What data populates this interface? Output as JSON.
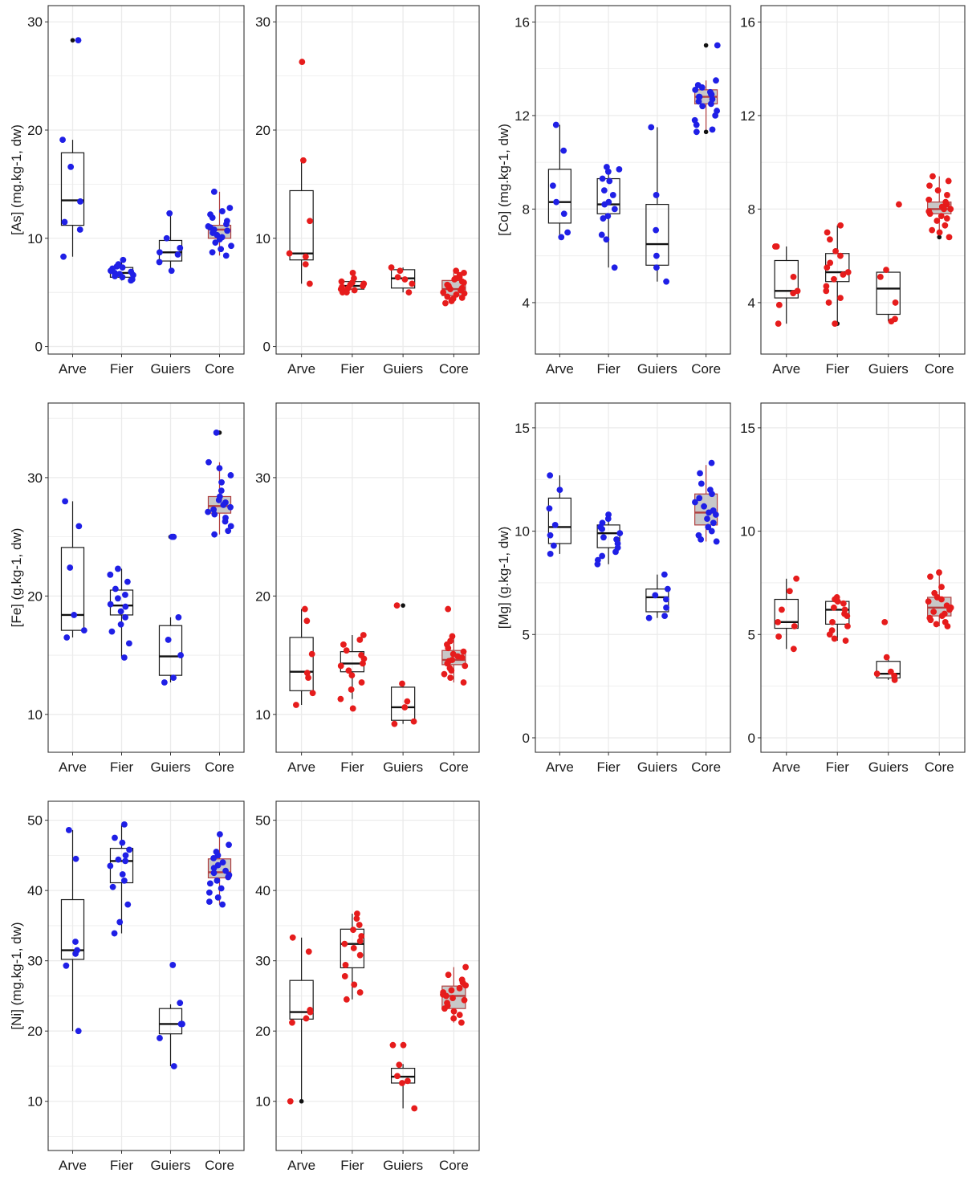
{
  "colors": {
    "set_a": "#1f1fe6",
    "set_b": "#e61c1c",
    "outlier": "#111111",
    "core_fill": "#c8c8c8",
    "core_border": "#b04040",
    "grid": "#ebebeb",
    "panel_border": "#333333"
  },
  "chart_data": [
    {
      "type": "box",
      "title": "",
      "ylabel": "[As] (mg.kg-1, dw)",
      "ylim": [
        -0.7,
        31.5
      ],
      "yticks": [
        0,
        10,
        20,
        30
      ],
      "minor": [
        5,
        15,
        25
      ],
      "categories": [
        "Arve",
        "Fier",
        "Guiers",
        "Core"
      ],
      "point_color": "set_a",
      "boxes": [
        {
          "min": 8.3,
          "q1": 11.2,
          "median": 13.5,
          "q3": 17.9,
          "max": 19.1
        },
        {
          "min": 6.1,
          "q1": 6.4,
          "median": 6.8,
          "q3": 7.3,
          "max": 8.0
        },
        {
          "min": 7.0,
          "q1": 7.9,
          "median": 8.7,
          "q3": 9.8,
          "max": 12.3
        },
        {
          "min": 8.4,
          "q1": 10.0,
          "median": 10.8,
          "q3": 11.2,
          "max": 14.3
        }
      ],
      "points": [
        [
          28.3,
          19.1,
          16.6,
          13.4,
          11.5,
          10.8,
          8.3
        ],
        [
          8.0,
          7.6,
          7.4,
          7.3,
          7.2,
          7.0,
          6.9,
          6.8,
          6.7,
          6.6,
          6.5,
          6.4,
          6.2,
          6.1
        ],
        [
          12.3,
          10.0,
          9.1,
          8.7,
          8.5,
          7.8,
          7.0
        ],
        [
          14.3,
          12.8,
          12.5,
          12.2,
          11.9,
          11.6,
          11.3,
          11.1,
          11.0,
          10.8,
          10.7,
          10.5,
          10.3,
          10.1,
          9.9,
          9.6,
          9.3,
          9.0,
          8.7,
          8.4
        ]
      ],
      "outliers": [
        [
          28.3
        ],
        [],
        [],
        []
      ]
    },
    {
      "type": "box",
      "title": "",
      "ylabel": "",
      "ylim": [
        -0.7,
        31.5
      ],
      "yticks": [
        0,
        10,
        20,
        30
      ],
      "minor": [
        5,
        15,
        25
      ],
      "categories": [
        "Arve",
        "Fier",
        "Guiers",
        "Core"
      ],
      "point_color": "set_b",
      "boxes": [
        {
          "min": 5.8,
          "q1": 8.0,
          "median": 8.6,
          "q3": 14.4,
          "max": 17.2
        },
        {
          "min": 5.0,
          "q1": 5.3,
          "median": 5.6,
          "q3": 6.0,
          "max": 6.8
        },
        {
          "min": 5.0,
          "q1": 5.4,
          "median": 6.3,
          "q3": 7.1,
          "max": 7.3
        },
        {
          "min": 4.0,
          "q1": 4.7,
          "median": 5.3,
          "q3": 6.1,
          "max": 7.0
        }
      ],
      "points": [
        [
          26.3,
          17.2,
          11.6,
          8.6,
          8.3,
          7.6,
          5.8
        ],
        [
          6.8,
          6.3,
          6.0,
          5.9,
          5.8,
          5.7,
          5.6,
          5.5,
          5.4,
          5.3,
          5.2,
          5.1,
          5.0,
          5.0
        ],
        [
          7.3,
          7.0,
          6.4,
          6.2,
          5.8,
          5.0
        ],
        [
          7.0,
          6.8,
          6.6,
          6.4,
          6.2,
          6.0,
          5.9,
          5.7,
          5.5,
          5.4,
          5.3,
          5.2,
          5.0,
          4.9,
          4.8,
          4.6,
          4.4,
          4.2,
          4.0,
          5.6,
          6.3,
          4.5
        ]
      ],
      "outliers": [
        [
          26.3
        ],
        [],
        [],
        []
      ]
    },
    {
      "type": "box",
      "title": "",
      "ylabel": "[Co] (mg.kg-1, dw)",
      "ylim": [
        1.8,
        16.7
      ],
      "yticks": [
        4,
        8,
        12,
        16
      ],
      "minor": [
        6,
        10,
        14
      ],
      "categories": [
        "Arve",
        "Fier",
        "Guiers",
        "Core"
      ],
      "point_color": "set_a",
      "boxes": [
        {
          "min": 6.8,
          "q1": 7.4,
          "median": 8.3,
          "q3": 9.7,
          "max": 11.6
        },
        {
          "min": 5.5,
          "q1": 7.8,
          "median": 8.2,
          "q3": 9.3,
          "max": 9.8
        },
        {
          "min": 4.9,
          "q1": 5.6,
          "median": 6.5,
          "q3": 8.2,
          "max": 11.5
        },
        {
          "min": 11.3,
          "q1": 12.5,
          "median": 12.8,
          "q3": 13.1,
          "max": 13.5
        }
      ],
      "points": [
        [
          11.6,
          10.5,
          9.0,
          8.3,
          7.8,
          7.0,
          6.8
        ],
        [
          9.8,
          9.7,
          9.6,
          9.3,
          9.2,
          8.8,
          8.6,
          8.3,
          8.2,
          8.0,
          7.7,
          7.6,
          6.9,
          6.7,
          5.5
        ],
        [
          11.5,
          8.6,
          7.1,
          6.0,
          5.5,
          4.9
        ],
        [
          15.0,
          13.5,
          13.3,
          13.2,
          13.1,
          13.0,
          12.9,
          12.9,
          12.8,
          12.8,
          12.7,
          12.6,
          12.5,
          12.4,
          12.2,
          12.0,
          11.8,
          11.6,
          11.4,
          11.3
        ]
      ],
      "outliers": [
        [],
        [],
        [],
        [
          15.0,
          11.3
        ]
      ]
    },
    {
      "type": "box",
      "title": "",
      "ylabel": "",
      "ylim": [
        1.8,
        16.7
      ],
      "yticks": [
        4,
        8,
        12,
        16
      ],
      "minor": [
        6,
        10,
        14
      ],
      "categories": [
        "Arve",
        "Fier",
        "Guiers",
        "Core"
      ],
      "point_color": "set_b",
      "boxes": [
        {
          "min": 3.1,
          "q1": 4.2,
          "median": 4.5,
          "q3": 5.8,
          "max": 6.4
        },
        {
          "min": 3.1,
          "q1": 4.9,
          "median": 5.3,
          "q3": 6.1,
          "max": 7.3
        },
        {
          "min": 3.2,
          "q1": 3.5,
          "median": 4.6,
          "q3": 5.3,
          "max": 5.4
        },
        {
          "min": 6.8,
          "q1": 7.8,
          "median": 8.0,
          "q3": 8.3,
          "max": 9.4
        }
      ],
      "points": [
        [
          6.4,
          6.4,
          5.1,
          4.5,
          4.4,
          3.9,
          3.1
        ],
        [
          7.3,
          7.0,
          6.7,
          6.2,
          6.0,
          5.7,
          5.5,
          5.3,
          5.2,
          5.0,
          4.7,
          4.5,
          4.2,
          4.0,
          3.1
        ],
        [
          8.2,
          5.4,
          5.1,
          4.0,
          3.3,
          3.2
        ],
        [
          9.4,
          9.2,
          9.0,
          8.8,
          8.6,
          8.4,
          8.3,
          8.2,
          8.1,
          8.0,
          8.0,
          7.9,
          7.8,
          7.7,
          7.6,
          7.5,
          7.3,
          7.1,
          7.0,
          6.8
        ]
      ],
      "outliers": [
        [],
        [
          3.1
        ],
        [],
        [
          6.8
        ]
      ]
    },
    {
      "type": "box",
      "title": "",
      "ylabel": "[Fe] (g.kg-1, dw)",
      "ylim": [
        6.8,
        36.3
      ],
      "yticks": [
        10,
        20,
        30
      ],
      "minor": [
        15,
        25,
        35
      ],
      "categories": [
        "Arve",
        "Fier",
        "Guiers",
        "Core"
      ],
      "point_color": "set_a",
      "boxes": [
        {
          "min": 16.5,
          "q1": 17.1,
          "median": 18.4,
          "q3": 24.1,
          "max": 28.0
        },
        {
          "min": 14.8,
          "q1": 18.4,
          "median": 19.2,
          "q3": 20.5,
          "max": 22.3
        },
        {
          "min": 12.7,
          "q1": 13.3,
          "median": 14.9,
          "q3": 17.5,
          "max": 18.2
        },
        {
          "min": 25.2,
          "q1": 27.0,
          "median": 27.6,
          "q3": 28.4,
          "max": 31.3
        }
      ],
      "points": [
        [
          28.0,
          25.9,
          22.4,
          18.4,
          17.1,
          16.5
        ],
        [
          22.3,
          21.8,
          21.2,
          20.6,
          20.1,
          19.8,
          19.3,
          19.1,
          18.7,
          18.2,
          17.6,
          17.0,
          16.0,
          14.8
        ],
        [
          25.0,
          25.0,
          18.2,
          16.3,
          15.0,
          13.1,
          12.7
        ],
        [
          33.8,
          31.3,
          30.8,
          30.2,
          29.6,
          28.9,
          28.4,
          28.1,
          27.9,
          27.7,
          27.5,
          27.3,
          27.1,
          26.9,
          26.6,
          26.3,
          25.9,
          25.5,
          25.2
        ]
      ],
      "outliers": [
        [],
        [],
        [
          25.0
        ],
        [
          33.8
        ]
      ]
    },
    {
      "type": "box",
      "title": "",
      "ylabel": "",
      "ylim": [
        6.8,
        36.3
      ],
      "yticks": [
        10,
        20,
        30
      ],
      "minor": [
        15,
        25,
        35
      ],
      "categories": [
        "Arve",
        "Fier",
        "Guiers",
        "Core"
      ],
      "point_color": "set_b",
      "boxes": [
        {
          "min": 10.8,
          "q1": 12.0,
          "median": 13.6,
          "q3": 16.5,
          "max": 18.9
        },
        {
          "min": 11.3,
          "q1": 13.6,
          "median": 14.3,
          "q3": 15.3,
          "max": 16.7
        },
        {
          "min": 9.2,
          "q1": 9.5,
          "median": 10.6,
          "q3": 12.3,
          "max": 12.6
        },
        {
          "min": 12.7,
          "q1": 14.2,
          "median": 14.6,
          "q3": 15.4,
          "max": 16.6
        }
      ],
      "points": [
        [
          18.9,
          17.9,
          15.1,
          13.5,
          13.1,
          11.8,
          10.8
        ],
        [
          16.7,
          16.3,
          15.9,
          15.4,
          15.0,
          14.7,
          14.3,
          14.1,
          13.7,
          13.3,
          12.7,
          12.1,
          11.3,
          10.5
        ],
        [
          19.2,
          12.6,
          11.1,
          10.6,
          9.4,
          9.2
        ],
        [
          18.9,
          16.6,
          16.2,
          15.9,
          15.6,
          15.3,
          15.1,
          14.9,
          14.8,
          14.6,
          14.5,
          14.3,
          14.1,
          13.9,
          13.7,
          13.4,
          13.1,
          12.7
        ]
      ],
      "outliers": [
        [],
        [
          10.5
        ],
        [
          19.2
        ],
        []
      ]
    },
    {
      "type": "box",
      "title": "",
      "ylabel": "[Mg] (g.kg-1, dw)",
      "ylim": [
        -0.7,
        16.2
      ],
      "yticks": [
        0,
        5,
        10,
        15
      ],
      "minor": [
        2.5,
        7.5,
        12.5
      ],
      "categories": [
        "Arve",
        "Fier",
        "Guiers",
        "Core"
      ],
      "point_color": "set_a",
      "boxes": [
        {
          "min": 8.9,
          "q1": 9.4,
          "median": 10.2,
          "q3": 11.6,
          "max": 12.7
        },
        {
          "min": 8.4,
          "q1": 9.2,
          "median": 9.9,
          "q3": 10.3,
          "max": 10.8
        },
        {
          "min": 5.8,
          "q1": 6.1,
          "median": 6.8,
          "q3": 7.2,
          "max": 7.9
        },
        {
          "min": 9.5,
          "q1": 10.3,
          "median": 10.9,
          "q3": 11.8,
          "max": 13.2
        }
      ],
      "points": [
        [
          12.7,
          12.0,
          11.1,
          10.3,
          9.8,
          9.3,
          8.9
        ],
        [
          10.8,
          10.6,
          10.4,
          10.2,
          10.1,
          9.9,
          9.7,
          9.6,
          9.4,
          9.2,
          9.0,
          8.8,
          8.6,
          8.4
        ],
        [
          7.9,
          7.2,
          6.9,
          6.7,
          6.3,
          5.9,
          5.8
        ],
        [
          13.3,
          12.8,
          12.3,
          12.0,
          11.8,
          11.6,
          11.4,
          11.2,
          11.0,
          10.9,
          10.8,
          10.6,
          10.4,
          10.2,
          10.0,
          9.8,
          9.6,
          9.5
        ]
      ],
      "outliers": [
        [],
        [],
        [],
        []
      ]
    },
    {
      "type": "box",
      "title": "",
      "ylabel": "",
      "ylim": [
        -0.7,
        16.2
      ],
      "yticks": [
        0,
        5,
        10,
        15
      ],
      "minor": [
        2.5,
        7.5,
        12.5
      ],
      "categories": [
        "Arve",
        "Fier",
        "Guiers",
        "Core"
      ],
      "point_color": "set_b",
      "boxes": [
        {
          "min": 4.3,
          "q1": 5.3,
          "median": 5.6,
          "q3": 6.7,
          "max": 7.7
        },
        {
          "min": 4.7,
          "q1": 5.5,
          "median": 6.2,
          "q3": 6.6,
          "max": 6.8
        },
        {
          "min": 2.8,
          "q1": 2.9,
          "median": 3.1,
          "q3": 3.7,
          "max": 3.9
        },
        {
          "min": 5.4,
          "q1": 5.9,
          "median": 6.3,
          "q3": 6.8,
          "max": 8.0
        }
      ],
      "points": [
        [
          7.7,
          7.1,
          6.2,
          5.6,
          5.4,
          4.9,
          4.3
        ],
        [
          6.8,
          6.7,
          6.6,
          6.5,
          6.3,
          6.2,
          6.0,
          5.9,
          5.6,
          5.4,
          5.2,
          5.0,
          4.8,
          4.7
        ],
        [
          5.6,
          3.9,
          3.2,
          3.1,
          3.0,
          2.8
        ],
        [
          8.0,
          7.8,
          7.3,
          7.0,
          6.8,
          6.7,
          6.6,
          6.4,
          6.3,
          6.2,
          6.1,
          6.0,
          5.9,
          5.8,
          5.7,
          5.6,
          5.5,
          5.4
        ]
      ],
      "outliers": [
        [],
        [],
        [],
        []
      ]
    },
    {
      "type": "box",
      "title": "",
      "ylabel": "[Ni] (mg.kg-1, dw)",
      "ylim": [
        3.0,
        52.7
      ],
      "yticks": [
        10,
        20,
        30,
        40,
        50
      ],
      "minor": [
        5,
        15,
        25,
        35,
        45
      ],
      "categories": [
        "Arve",
        "Fier",
        "Guiers",
        "Core"
      ],
      "point_color": "set_a",
      "boxes": [
        {
          "min": 20.0,
          "q1": 30.2,
          "median": 31.5,
          "q3": 38.7,
          "max": 48.6
        },
        {
          "min": 33.9,
          "q1": 41.1,
          "median": 44.2,
          "q3": 46.0,
          "max": 49.4
        },
        {
          "min": 15.0,
          "q1": 19.6,
          "median": 21.0,
          "q3": 23.2,
          "max": 23.8
        },
        {
          "min": 38.0,
          "q1": 41.8,
          "median": 42.6,
          "q3": 44.5,
          "max": 48.0
        }
      ],
      "points": [
        [
          48.6,
          44.5,
          32.7,
          31.5,
          31.0,
          29.3,
          20.0
        ],
        [
          49.4,
          47.5,
          46.8,
          45.8,
          45.0,
          44.4,
          44.2,
          43.5,
          42.3,
          41.4,
          40.5,
          38.0,
          35.5,
          33.9
        ],
        [
          29.4,
          24.0,
          21.0,
          21.0,
          19.0,
          15.0
        ],
        [
          48.0,
          46.5,
          45.5,
          45.0,
          44.6,
          44.0,
          43.6,
          43.2,
          42.8,
          42.5,
          42.2,
          41.9,
          41.4,
          41.0,
          40.3,
          39.7,
          39.0,
          38.4,
          38.0
        ]
      ],
      "outliers": [
        [],
        [],
        [],
        []
      ]
    },
    {
      "type": "box",
      "title": "",
      "ylabel": "",
      "ylim": [
        3.0,
        52.7
      ],
      "yticks": [
        10,
        20,
        30,
        40,
        50
      ],
      "minor": [
        5,
        15,
        25,
        35,
        45
      ],
      "categories": [
        "Arve",
        "Fier",
        "Guiers",
        "Core"
      ],
      "point_color": "set_b",
      "boxes": [
        {
          "min": 10.0,
          "q1": 21.7,
          "median": 22.7,
          "q3": 27.2,
          "max": 33.3
        },
        {
          "min": 24.5,
          "q1": 29.0,
          "median": 32.4,
          "q3": 34.5,
          "max": 36.7
        },
        {
          "min": 9.0,
          "q1": 12.6,
          "median": 13.5,
          "q3": 14.7,
          "max": 15.3
        },
        {
          "min": 21.2,
          "q1": 23.2,
          "median": 25.0,
          "q3": 26.4,
          "max": 29.1
        }
      ],
      "points": [
        [
          33.3,
          31.3,
          23.0,
          22.7,
          21.8,
          21.2,
          10.0
        ],
        [
          36.7,
          36.0,
          35.1,
          34.4,
          33.5,
          32.8,
          32.4,
          31.8,
          30.8,
          29.4,
          27.8,
          26.6,
          25.5,
          24.5
        ],
        [
          18.0,
          18.0,
          15.2,
          13.6,
          12.9,
          12.6,
          9.0
        ],
        [
          29.1,
          28.0,
          27.3,
          26.9,
          26.5,
          26.1,
          25.8,
          25.5,
          25.2,
          25.0,
          24.7,
          24.4,
          24.0,
          23.6,
          23.2,
          22.8,
          22.3,
          21.8,
          21.2
        ]
      ],
      "outliers": [
        [
          10.0
        ],
        [],
        [
          18.0
        ],
        []
      ]
    }
  ]
}
